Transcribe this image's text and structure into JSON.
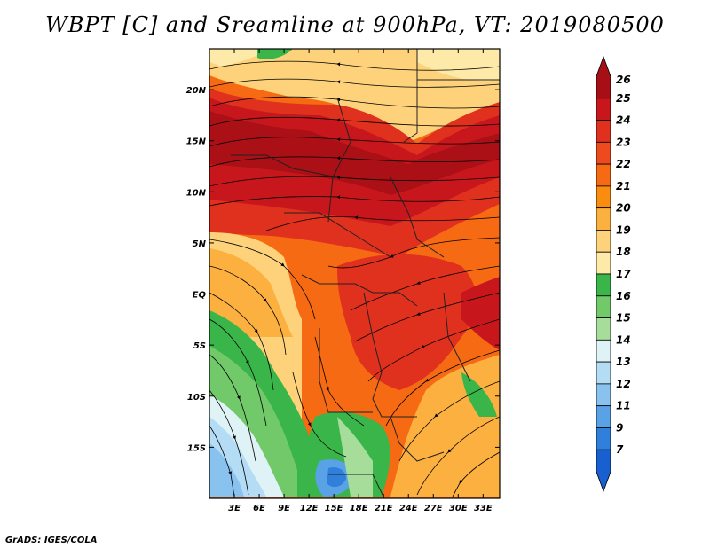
{
  "title": "WBPT [C] and Sreamline at 900hPa, VT: 2019080500",
  "credit": "GrADS: IGES/COLA",
  "map": {
    "lon_range": [
      0,
      35
    ],
    "lat_range": [
      -20,
      24
    ],
    "lon_ticks": [
      "3E",
      "6E",
      "9E",
      "12E",
      "15E",
      "18E",
      "21E",
      "24E",
      "27E",
      "30E",
      "33E"
    ],
    "lon_values": [
      3,
      6,
      9,
      12,
      15,
      18,
      21,
      24,
      27,
      30,
      33
    ],
    "lat_ticks": [
      "20N",
      "15N",
      "10N",
      "5N",
      "EQ",
      "5S",
      "10S",
      "15S"
    ],
    "lat_values": [
      20,
      15,
      10,
      5,
      0,
      -5,
      -10,
      -15
    ]
  },
  "colorbar": {
    "labels": [
      "26",
      "25",
      "24",
      "23",
      "22",
      "21",
      "20",
      "19",
      "18",
      "17",
      "16",
      "15",
      "14",
      "13",
      "12",
      "11",
      "9",
      "7"
    ],
    "colors": [
      "#a50f15",
      "#c8171c",
      "#e0301e",
      "#ee4a1f",
      "#f56a13",
      "#fa8c0f",
      "#fcb040",
      "#fdd27a",
      "#feeaa8",
      "#3ab54a",
      "#71c96a",
      "#a6dd9a",
      "#dff3f6",
      "#b5dcf5",
      "#89c2ee",
      "#5aa2e6",
      "#2f7fdb",
      "#1860d0"
    ]
  }
}
